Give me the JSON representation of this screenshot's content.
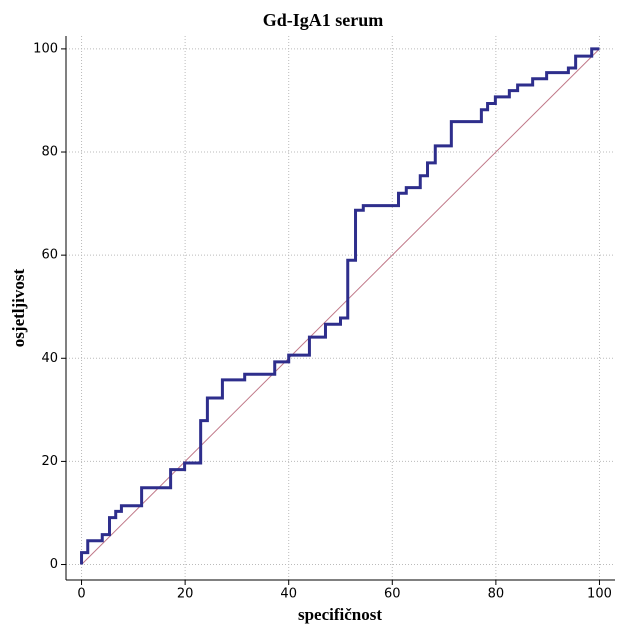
{
  "chart_data": {
    "type": "line",
    "title": "Gd-IgA1 serum",
    "x_label": "specifičnost",
    "y_label": "osjetljivost",
    "xlim": [
      -3,
      103
    ],
    "ylim": [
      -3,
      102.5
    ],
    "xticks": [
      0,
      20,
      40,
      60,
      80,
      100
    ],
    "yticks": [
      0,
      20,
      40,
      60,
      80,
      100
    ],
    "grid": true,
    "reference_line": {
      "x": [
        0,
        100
      ],
      "y": [
        0,
        100
      ],
      "color": "#c07888"
    },
    "series": [
      {
        "color": "#2e2e8c",
        "x": [
          0,
          0,
          1.2,
          1.2,
          4,
          4,
          5.4,
          5.4,
          6.6,
          6.6,
          7.7,
          7.7,
          11.6,
          11.6,
          17.2,
          17.2,
          19.9,
          19.9,
          23,
          23,
          24.3,
          24.3,
          27.2,
          27.2,
          31.5,
          31.5,
          37.3,
          37.3,
          40,
          40,
          44,
          44,
          47.1,
          47.1,
          50,
          50,
          51.4,
          51.4,
          52.9,
          52.9,
          54.4,
          54.4,
          61.2,
          61.2,
          62.7,
          62.7,
          65.4,
          65.4,
          66.8,
          66.8,
          68.3,
          68.3,
          71.4,
          71.4,
          77.2,
          77.2,
          78.4,
          78.4,
          79.9,
          79.9,
          82.6,
          82.6,
          84.2,
          84.2,
          87.1,
          87.1,
          89.8,
          89.8,
          94,
          94,
          95.4,
          95.4,
          98.5,
          98.5,
          100
        ],
        "values": [
          0,
          2.3,
          2.3,
          4.6,
          4.6,
          5.8,
          5.8,
          9.1,
          9.1,
          10.3,
          10.3,
          11.4,
          11.4,
          14.9,
          14.9,
          18.4,
          18.4,
          19.7,
          19.7,
          27.9,
          27.9,
          32.3,
          32.3,
          35.8,
          35.8,
          36.9,
          36.9,
          39.3,
          39.3,
          40.6,
          40.6,
          44.1,
          44.1,
          46.6,
          46.6,
          47.8,
          47.8,
          59,
          59,
          68.7,
          68.7,
          69.6,
          69.6,
          72,
          72,
          73.1,
          73.1,
          75.4,
          75.4,
          77.9,
          77.9,
          81.2,
          81.2,
          85.9,
          85.9,
          88.2,
          88.2,
          89.4,
          89.4,
          90.7,
          90.7,
          91.9,
          91.9,
          93,
          93,
          94.2,
          94.2,
          95.4,
          95.4,
          96.3,
          96.3,
          98.6,
          98.6,
          100,
          100
        ]
      }
    ]
  }
}
